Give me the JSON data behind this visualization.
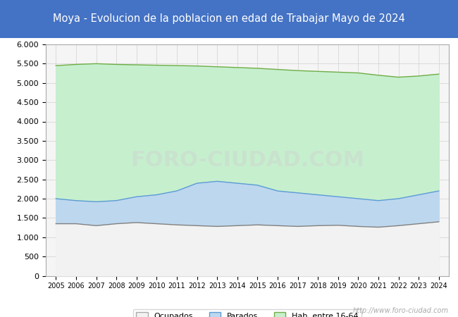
{
  "title": "Moya - Evolucion de la poblacion en edad de Trabajar Mayo de 2024",
  "title_bg_color": "#4472c4",
  "title_text_color": "#ffffff",
  "background_color": "#ffffff",
  "plot_bg_color": "#f5f5f5",
  "xlabel": "",
  "ylabel": "",
  "ylim": [
    0,
    6000
  ],
  "yticks": [
    0,
    500,
    1000,
    1500,
    2000,
    2500,
    3000,
    3500,
    4000,
    4500,
    5000,
    5500,
    6000
  ],
  "years": [
    2005,
    2006,
    2007,
    2008,
    2009,
    2010,
    2011,
    2012,
    2013,
    2014,
    2015,
    2016,
    2017,
    2018,
    2019,
    2020,
    2021,
    2022,
    2023,
    2024
  ],
  "hab1664": [
    5450,
    5480,
    5500,
    5480,
    5470,
    5460,
    5450,
    5440,
    5420,
    5400,
    5380,
    5350,
    5320,
    5300,
    5280,
    5260,
    5200,
    5150,
    5180,
    5230
  ],
  "parados": [
    2000,
    1950,
    1920,
    1950,
    2050,
    2100,
    2200,
    2400,
    2450,
    2400,
    2350,
    2200,
    2150,
    2100,
    2050,
    2000,
    1950,
    2000,
    2100,
    2200
  ],
  "ocupados": [
    1350,
    1350,
    1300,
    1350,
    1380,
    1350,
    1320,
    1300,
    1280,
    1300,
    1320,
    1300,
    1280,
    1300,
    1310,
    1280,
    1260,
    1300,
    1350,
    1400
  ],
  "color_hab": "#c6efce",
  "color_hab_line": "#70ad47",
  "color_parados": "#bdd7ee",
  "color_parados_line": "#5b9bd5",
  "color_ocupados": "#f2f2f2",
  "color_ocupados_line": "#808080",
  "legend_labels": [
    "Ocupados",
    "Parados",
    "Hab. entre 16-64"
  ],
  "watermark": "http://www.foro-ciudad.com",
  "grid_color": "#d0d0d0"
}
